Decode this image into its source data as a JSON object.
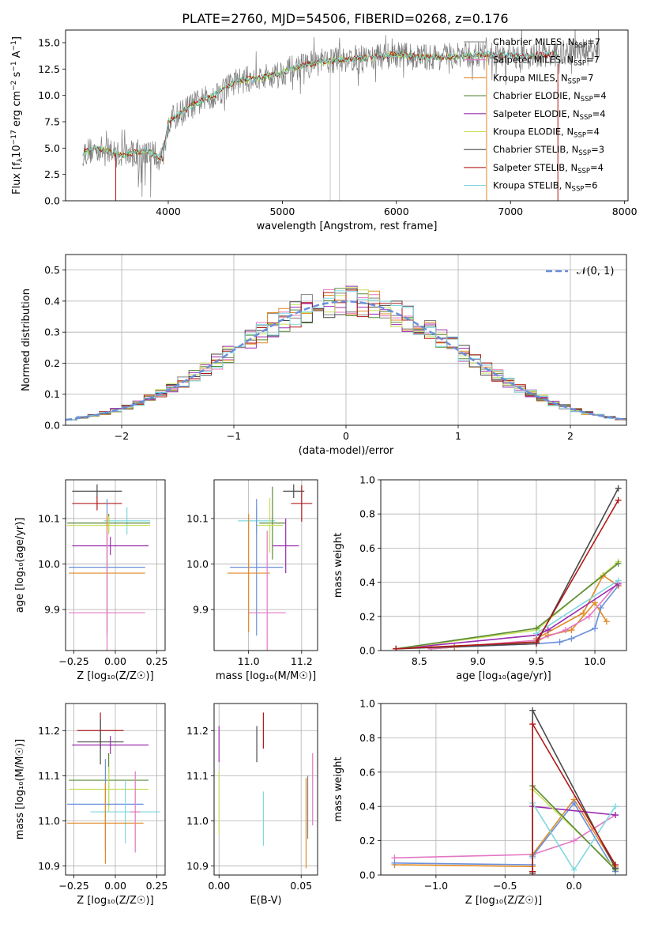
{
  "figure": {
    "title": "PLATE=2760, MJD=54506, FIBERID=0268, z=0.176",
    "colors": {
      "chabrier_miles": "#808080",
      "salpeter_miles": "#e377c2",
      "kroupa_miles": "#e08a24",
      "chabrier_elodie": "#5a8a3a",
      "salpeter_elodie": "#9b2bb0",
      "kroupa_elodie": "#c6e05a",
      "chabrier_stelib": "#4a4a4a",
      "salpeter_stelib": "#b01818",
      "kroupa_stelib": "#7fd8e0",
      "miles_blue": "#6a8fdc"
    }
  },
  "chart_data": [
    {
      "id": "spectrum",
      "type": "line",
      "xlabel": "wavelength [Angstrom, rest frame]",
      "ylabel_parts": [
        "Flux [f",
        "λ",
        "10",
        "−17",
        " erg cm",
        "−2",
        " s",
        "−1",
        " A",
        "−1",
        "]"
      ],
      "xlim": [
        3100,
        8030
      ],
      "ylim": [
        0,
        16.2
      ],
      "xticks": [
        4000,
        5000,
        6000,
        7000,
        8000
      ],
      "yticks": [
        0.0,
        2.5,
        5.0,
        7.5,
        10.0,
        12.5,
        15.0
      ],
      "ytick_labels": [
        "0.0",
        "2.5",
        "5.0",
        "7.5",
        "10.0",
        "12.5",
        "15.0"
      ],
      "legend_position": "top-right",
      "continuum": [
        [
          3250,
          4.6
        ],
        [
          3400,
          4.9
        ],
        [
          3600,
          4.3
        ],
        [
          3800,
          4.8
        ],
        [
          3950,
          4.0
        ],
        [
          4000,
          7.5
        ],
        [
          4200,
          9.0
        ],
        [
          4400,
          10.0
        ],
        [
          4600,
          11.4
        ],
        [
          4800,
          11.6
        ],
        [
          5000,
          12.2
        ],
        [
          5200,
          12.9
        ],
        [
          5500,
          13.4
        ],
        [
          5800,
          13.6
        ],
        [
          6000,
          13.9
        ],
        [
          6200,
          13.6
        ],
        [
          6500,
          13.7
        ],
        [
          6800,
          13.9
        ],
        [
          7100,
          13.7
        ],
        [
          7400,
          13.9
        ],
        [
          7800,
          14.2
        ]
      ],
      "series": [
        {
          "key": "chabrier_miles",
          "name": "Chabrier MILES, N",
          "sub": "SSP",
          "eq": "=7"
        },
        {
          "key": "salpeter_miles",
          "name": "Salpeter MILES, N",
          "sub": "SSP",
          "eq": "=7"
        },
        {
          "key": "kroupa_miles",
          "name": "Kroupa MILES, N",
          "sub": "SSP",
          "eq": "=7"
        },
        {
          "key": "chabrier_elodie",
          "name": "Chabrier ELODIE, N",
          "sub": "SSP",
          "eq": "=4"
        },
        {
          "key": "salpeter_elodie",
          "name": "Salpeter ELODIE, N",
          "sub": "SSP",
          "eq": "=4"
        },
        {
          "key": "kroupa_elodie",
          "name": "Kroupa ELODIE, N",
          "sub": "SSP",
          "eq": "=4"
        },
        {
          "key": "chabrier_stelib",
          "name": "Chabrier STELIB, N",
          "sub": "SSP",
          "eq": "=3"
        },
        {
          "key": "salpeter_stelib",
          "name": "Salpeter STELIB, N",
          "sub": "SSP",
          "eq": "=4"
        },
        {
          "key": "kroupa_stelib",
          "name": "Kroupa STELIB, N",
          "sub": "SSP",
          "eq": "=6"
        }
      ]
    },
    {
      "id": "residuals",
      "type": "line",
      "xlabel": "(data-model)/error",
      "ylabel": "Normed distribution",
      "xlim": [
        -2.5,
        2.5
      ],
      "ylim": [
        0,
        0.55
      ],
      "xticks": [
        -2,
        -1,
        0,
        1,
        2
      ],
      "xtick_labels": [
        "−2",
        "−1",
        "0",
        "1",
        "2"
      ],
      "yticks": [
        0.0,
        0.1,
        0.2,
        0.3,
        0.4,
        0.5
      ],
      "ytick_labels": [
        "0.0",
        "0.1",
        "0.2",
        "0.3",
        "0.4",
        "0.5"
      ],
      "legend": "𝒩(0, 1)",
      "legend_position": "top-right",
      "gaussian": {
        "mean": 0,
        "sigma": 1,
        "color": "#6a8fdc"
      }
    },
    {
      "id": "age_vs_Z",
      "type": "scatter",
      "xlabel": "Z [log₁₀(Z/Z☉)]",
      "ylabel": "age  [log₁₀(age/yr)]",
      "xlim": [
        -0.3,
        0.3
      ],
      "ylim": [
        9.81,
        10.185
      ],
      "xticks": [
        -0.25,
        0.0,
        0.25
      ],
      "xtick_labels": [
        "−0.25",
        "0.00",
        "0.25"
      ],
      "yticks": [
        9.9,
        10.0,
        10.1
      ],
      "ytick_labels": [
        "9.9",
        "10.0",
        "10.1"
      ],
      "points": [
        {
          "c": "chabrier_stelib",
          "x": -0.11,
          "y": 10.16,
          "xe": 0.15,
          "ye": 0.015
        },
        {
          "c": "salpeter_stelib",
          "x": -0.11,
          "y": 10.133,
          "xe": 0.15,
          "ye": 0.015
        },
        {
          "c": "kroupa_stelib",
          "x": 0.07,
          "y": 10.095,
          "xe": 0.14,
          "ye": 0.03
        },
        {
          "c": "chabrier_elodie",
          "x": -0.04,
          "y": 10.09,
          "xe": 0.25,
          "ye": 0.02
        },
        {
          "c": "kroupa_elodie",
          "x": -0.04,
          "y": 10.085,
          "xe": 0.25,
          "ye": 0.02
        },
        {
          "c": "salpeter_elodie",
          "x": -0.03,
          "y": 10.04,
          "xe": 0.23,
          "ye": 0.02
        },
        {
          "c": "miles_blue",
          "x": -0.05,
          "y": 9.993,
          "xe": 0.23,
          "ye": 0.15
        },
        {
          "c": "kroupa_miles",
          "x": -0.05,
          "y": 9.98,
          "xe": 0.23,
          "ye": 0.13
        },
        {
          "c": "salpeter_miles",
          "x": -0.05,
          "y": 9.893,
          "xe": 0.23,
          "ye": 0.18
        }
      ]
    },
    {
      "id": "age_vs_mass",
      "type": "scatter",
      "xlabel": "mass [log₁₀(M/M☉)]",
      "xlim": [
        10.87,
        11.26
      ],
      "ylim": [
        9.81,
        10.185
      ],
      "xticks": [
        11.0,
        11.2
      ],
      "xtick_labels": [
        "11.0",
        "11.2"
      ],
      "yticks": [
        9.9,
        10.0,
        10.1
      ],
      "ytick_labels": [
        "9.9",
        "10.0",
        "10.1"
      ],
      "points": [
        {
          "c": "chabrier_stelib",
          "x": 11.17,
          "y": 10.16,
          "xe": 0.04,
          "ye": 0.015
        },
        {
          "c": "salpeter_stelib",
          "x": 11.2,
          "y": 10.133,
          "xe": 0.04,
          "ye": 0.04
        },
        {
          "c": "kroupa_stelib",
          "x": 11.03,
          "y": 10.095,
          "xe": 0.07,
          "ye": 0.03
        },
        {
          "c": "chabrier_elodie",
          "x": 11.09,
          "y": 10.09,
          "xe": 0.05,
          "ye": 0.08
        },
        {
          "c": "kroupa_elodie",
          "x": 11.08,
          "y": 10.085,
          "xe": 0.05,
          "ye": 0.06
        },
        {
          "c": "salpeter_elodie",
          "x": 11.14,
          "y": 10.04,
          "xe": 0.05,
          "ye": 0.06
        },
        {
          "c": "miles_blue",
          "x": 11.03,
          "y": 9.993,
          "xe": 0.1,
          "ye": 0.15
        },
        {
          "c": "kroupa_miles",
          "x": 11.0,
          "y": 9.98,
          "xe": 0.08,
          "ye": 0.13
        },
        {
          "c": "salpeter_miles",
          "x": 11.07,
          "y": 9.893,
          "xe": 0.07,
          "ye": 0.18
        }
      ]
    },
    {
      "id": "massweight_vs_age",
      "type": "line",
      "xlabel": "age  [log₁₀(age/yr)]",
      "ylabel": "mass weight",
      "xlim": [
        8.17,
        10.27
      ],
      "ylim": [
        0,
        1.0
      ],
      "xticks": [
        8.5,
        9.0,
        9.5,
        10.0
      ],
      "xtick_labels": [
        "8.5",
        "9.0",
        "9.5",
        "10.0"
      ],
      "yticks": [
        0.0,
        0.2,
        0.4,
        0.6,
        0.8,
        1.0
      ],
      "ytick_labels": [
        "0.0",
        "0.2",
        "0.4",
        "0.6",
        "0.8",
        "1.0"
      ],
      "series": [
        {
          "c": "miles_blue",
          "x": [
            8.6,
            8.8,
            9.5,
            9.7,
            9.8,
            10.0,
            10.05,
            10.2
          ],
          "y": [
            0.01,
            0.02,
            0.04,
            0.05,
            0.07,
            0.13,
            0.25,
            0.38
          ]
        },
        {
          "c": "kroupa_miles",
          "x": [
            8.6,
            8.8,
            9.5,
            9.6,
            9.8,
            10.0,
            10.1
          ],
          "y": [
            0.01,
            0.02,
            0.05,
            0.09,
            0.12,
            0.28,
            0.17
          ]
        },
        {
          "c": "kroupa_miles",
          "x": [
            9.5,
            9.9,
            10.07,
            10.2
          ],
          "y": [
            0.07,
            0.22,
            0.44,
            0.38
          ]
        },
        {
          "c": "salpeter_miles",
          "x": [
            8.6,
            9.5,
            9.75,
            9.95,
            10.2
          ],
          "y": [
            0.01,
            0.06,
            0.12,
            0.2,
            0.4
          ]
        },
        {
          "c": "salpeter_elodie",
          "x": [
            8.3,
            9.5,
            9.6,
            10.2
          ],
          "y": [
            0.01,
            0.09,
            0.12,
            0.39
          ]
        },
        {
          "c": "kroupa_elodie",
          "x": [
            8.3,
            9.5,
            10.2
          ],
          "y": [
            0.01,
            0.12,
            0.52
          ]
        },
        {
          "c": "chabrier_elodie",
          "x": [
            8.3,
            9.5,
            10.2
          ],
          "y": [
            0.01,
            0.13,
            0.51
          ]
        },
        {
          "c": "kroupa_stelib",
          "x": [
            9.5,
            10.2
          ],
          "y": [
            0.1,
            0.41
          ]
        },
        {
          "c": "chabrier_stelib",
          "x": [
            8.3,
            9.5,
            10.2
          ],
          "y": [
            0.01,
            0.04,
            0.95
          ]
        },
        {
          "c": "salpeter_stelib",
          "x": [
            8.3,
            9.5,
            10.2
          ],
          "y": [
            0.01,
            0.05,
            0.88
          ]
        }
      ]
    },
    {
      "id": "mass_vs_Z",
      "type": "scatter",
      "xlabel": "Z [log₁₀(Z/Z☉)]",
      "ylabel": "mass [log₁₀(M/M☉)]",
      "xlim": [
        -0.3,
        0.3
      ],
      "ylim": [
        10.88,
        11.26
      ],
      "xticks": [
        -0.25,
        0.0,
        0.25
      ],
      "xtick_labels": [
        "−0.25",
        "0.00",
        "0.25"
      ],
      "yticks": [
        10.9,
        11.0,
        11.1,
        11.2
      ],
      "ytick_labels": [
        "10.9",
        "11.0",
        "11.1",
        "11.2"
      ],
      "points": [
        {
          "c": "salpeter_stelib",
          "x": -0.09,
          "y": 11.2,
          "xe": 0.14,
          "ye": 0.04
        },
        {
          "c": "chabrier_stelib",
          "x": -0.09,
          "y": 11.175,
          "xe": 0.14,
          "ye": 0.05
        },
        {
          "c": "salpeter_elodie",
          "x": -0.03,
          "y": 11.168,
          "xe": 0.23,
          "ye": 0.02
        },
        {
          "c": "chabrier_elodie",
          "x": -0.04,
          "y": 11.09,
          "xe": 0.24,
          "ye": 0.06
        },
        {
          "c": "kroupa_elodie",
          "x": -0.04,
          "y": 11.07,
          "xe": 0.24,
          "ye": 0.05
        },
        {
          "c": "miles_blue",
          "x": -0.06,
          "y": 11.037,
          "xe": 0.23,
          "ye": 0.1
        },
        {
          "c": "kroupa_stelib",
          "x": 0.06,
          "y": 11.02,
          "xe": 0.21,
          "ye": 0.07
        },
        {
          "c": "kroupa_miles",
          "x": -0.06,
          "y": 10.995,
          "xe": 0.23,
          "ye": 0.09
        },
        {
          "c": "salpeter_miles",
          "x": 0.12,
          "y": 11.02,
          "xe": 0.03,
          "ye": 0.09
        }
      ]
    },
    {
      "id": "mass_vs_EBV",
      "type": "scatter",
      "xlabel": "E(B-V)",
      "xlim": [
        -0.003,
        0.06
      ],
      "ylim": [
        10.88,
        11.26
      ],
      "xticks": [
        0.0,
        0.05
      ],
      "xtick_labels": [
        "0.00",
        "0.05"
      ],
      "yticks": [
        10.9,
        11.0,
        11.1,
        11.2
      ],
      "ytick_labels": [
        "10.9",
        "11.0",
        "11.1",
        "11.2"
      ],
      "points": [
        {
          "c": "salpeter_elodie",
          "x": 0.0,
          "y": 11.17,
          "xe": 0,
          "ye": 0.04
        },
        {
          "c": "kroupa_elodie",
          "x": 0.0,
          "y": 11.04,
          "xe": 0,
          "ye": 0.07
        },
        {
          "c": "chabrier_stelib",
          "x": 0.023,
          "y": 11.17,
          "xe": 0,
          "ye": 0.04
        },
        {
          "c": "salpeter_stelib",
          "x": 0.027,
          "y": 11.2,
          "xe": 0,
          "ye": 0.04
        },
        {
          "c": "kroupa_stelib",
          "x": 0.027,
          "y": 11.005,
          "xe": 0,
          "ye": 0.06
        },
        {
          "c": "kroupa_miles",
          "x": 0.053,
          "y": 10.995,
          "xe": 0,
          "ye": 0.1
        },
        {
          "c": "chabrier_miles",
          "x": 0.054,
          "y": 11.03,
          "xe": 0,
          "ye": 0.07
        },
        {
          "c": "salpeter_miles",
          "x": 0.057,
          "y": 11.07,
          "xe": 0,
          "ye": 0.08
        }
      ]
    },
    {
      "id": "massweight_vs_Z",
      "type": "line",
      "xlabel": "Z [log₁₀(Z/Z☉)]",
      "ylabel": "mass weight",
      "xlim": [
        -1.4,
        0.38
      ],
      "ylim": [
        0,
        1.0
      ],
      "xticks": [
        -1.0,
        -0.5,
        0.0
      ],
      "xtick_labels": [
        "−1.0",
        "−0.5",
        "0.0"
      ],
      "yticks": [
        0.0,
        0.2,
        0.4,
        0.6,
        0.8,
        1.0
      ],
      "ytick_labels": [
        "0.0",
        "0.2",
        "0.4",
        "0.6",
        "0.8",
        "1.0"
      ],
      "series": [
        {
          "c": "salpeter_miles",
          "x": [
            -1.3,
            -0.3,
            0.0,
            0.3
          ],
          "y": [
            0.1,
            0.12,
            0.2,
            0.35
          ]
        },
        {
          "c": "kroupa_miles",
          "x": [
            -1.3,
            -0.3,
            -0.3,
            0.0,
            0.3
          ],
          "y": [
            0.06,
            0.05,
            0.12,
            0.44,
            0.05
          ]
        },
        {
          "c": "miles_blue",
          "x": [
            -1.3,
            -0.3,
            -0.3,
            0.0,
            0.3
          ],
          "y": [
            0.07,
            0.06,
            0.11,
            0.42,
            0.02
          ]
        },
        {
          "c": "salpeter_elodie",
          "x": [
            -0.3,
            -0.3,
            0.3
          ],
          "y": [
            0.02,
            0.4,
            0.35
          ]
        },
        {
          "c": "kroupa_elodie",
          "x": [
            -0.3,
            -0.3,
            0.3
          ],
          "y": [
            0.02,
            0.5,
            0.04
          ]
        },
        {
          "c": "chabrier_elodie",
          "x": [
            -0.3,
            -0.3,
            0.3
          ],
          "y": [
            0.02,
            0.52,
            0.03
          ]
        },
        {
          "c": "kroupa_stelib",
          "x": [
            -0.3,
            -0.3,
            0.0,
            0.3
          ],
          "y": [
            0.1,
            0.42,
            0.03,
            0.4
          ]
        },
        {
          "c": "chabrier_stelib",
          "x": [
            -0.3,
            -0.3,
            0.3
          ],
          "y": [
            0.01,
            0.96,
            0.04
          ]
        },
        {
          "c": "salpeter_stelib",
          "x": [
            -0.3,
            -0.3,
            0.3
          ],
          "y": [
            0.02,
            0.88,
            0.06
          ]
        }
      ]
    }
  ]
}
